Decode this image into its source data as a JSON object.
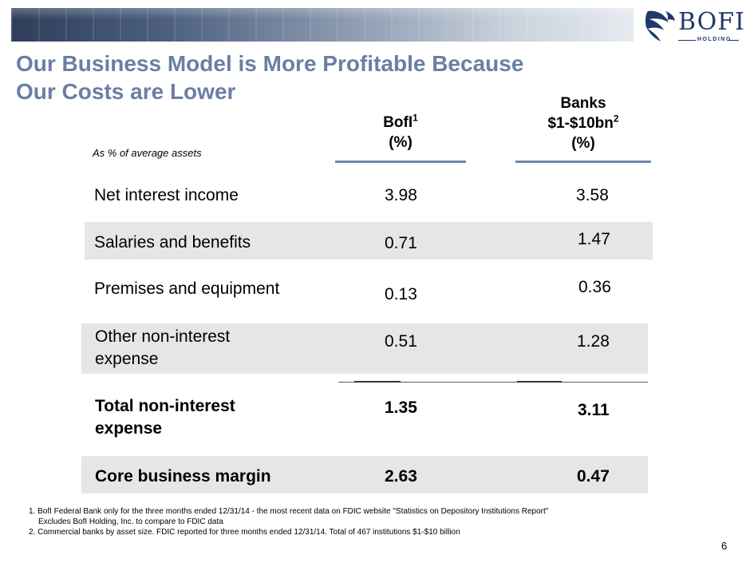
{
  "logo": {
    "word": "BOFI",
    "sub": "HOLDING"
  },
  "title": {
    "line1": "Our Business Model is More Profitable Because",
    "line2": "Our Costs are Lower"
  },
  "subhead": "As % of average assets",
  "columns": {
    "bofi": {
      "name": "BofI",
      "sup": "1",
      "unit": "(%)"
    },
    "banks": {
      "line1": "Banks",
      "name": "$1-$10bn",
      "sup": "2",
      "unit": "(%)"
    }
  },
  "rows": [
    {
      "label": "Net interest income",
      "bofi": "3.98",
      "banks": "3.58"
    },
    {
      "label": "Salaries and benefits",
      "bofi": "0.71",
      "banks": "1.47"
    },
    {
      "label": "Premises and equipment",
      "bofi": "0.13",
      "banks": "0.36"
    },
    {
      "label": "Other non-interest expense",
      "bofi": "0.51",
      "banks": "1.28"
    },
    {
      "label": "Total non-interest expense",
      "bofi": "1.35",
      "banks": "3.11"
    },
    {
      "label": "Core business margin",
      "bofi": "2.63",
      "banks": "0.47"
    }
  ],
  "footnotes": {
    "line1": "1. BofI Federal Bank only for the three months ended 12/31/14 - the most recent data on FDIC website \"Statistics on Depository Institutions Report\"",
    "line2": "Excludes BofI Holding, Inc. to compare to FDIC data",
    "line3": "2. Commercial banks by asset size. FDIC reported for three months ended 12/31/14. Total of 467 institutions $1-$10 billion"
  },
  "page_number": "6",
  "colors": {
    "title": "#6b7ea4",
    "rule": "#6e86ad",
    "shade": "#e6e6e6",
    "logo": "#1f3a6a"
  }
}
